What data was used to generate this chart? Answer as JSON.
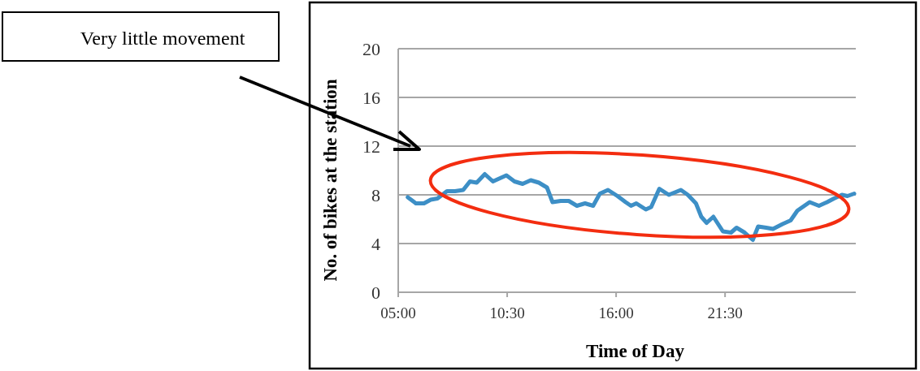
{
  "chart_data": {
    "type": "line",
    "xlabel": "Time of Day",
    "ylabel": "No. of bikes at the station",
    "annotations": [
      "Very little movement"
    ],
    "xlim": [
      5,
      28.1
    ],
    "ylim": [
      0,
      20
    ],
    "xticks": [
      {
        "value": 5,
        "label": "05:00"
      },
      {
        "value": 10.5,
        "label": "10:30"
      },
      {
        "value": 16,
        "label": "16:00"
      },
      {
        "value": 21.5,
        "label": "21:30"
      }
    ],
    "yticks": [
      0,
      4,
      8,
      12,
      16,
      20
    ],
    "grid": "y",
    "marker": "none",
    "line_style": "solid",
    "series": [
      {
        "color": "#3d8fc6",
        "x": [
          5.48,
          5.89,
          6.3,
          6.64,
          6.98,
          7.46,
          7.87,
          8.28,
          8.62,
          8.96,
          9.37,
          9.78,
          10.05,
          10.46,
          10.87,
          11.28,
          11.69,
          12.1,
          12.51,
          12.79,
          13.2,
          13.61,
          14.02,
          14.43,
          14.84,
          15.18,
          15.59,
          16.07,
          16.48,
          16.75,
          17.02,
          17.5,
          17.77,
          18.18,
          18.66,
          19.27,
          19.62,
          20.03,
          20.3,
          20.57,
          20.91,
          21.39,
          21.8,
          22.08,
          22.49,
          22.9,
          23.17,
          23.58,
          23.92,
          24.4,
          24.81,
          25.15,
          25.77,
          26.24,
          26.65,
          27.0,
          27.4,
          27.68,
          28.02
        ],
        "values": [
          7.8,
          7.3,
          7.3,
          7.6,
          7.7,
          8.3,
          8.3,
          8.4,
          9.1,
          9.0,
          9.7,
          9.1,
          9.3,
          9.6,
          9.1,
          8.9,
          9.2,
          9.0,
          8.6,
          7.4,
          7.5,
          7.5,
          7.1,
          7.3,
          7.1,
          8.1,
          8.4,
          7.9,
          7.4,
          7.1,
          7.3,
          6.8,
          7.0,
          8.5,
          8.0,
          8.4,
          8.0,
          7.3,
          6.2,
          5.7,
          6.2,
          5.0,
          4.9,
          5.3,
          4.9,
          4.3,
          5.4,
          5.3,
          5.2,
          5.6,
          5.9,
          6.7,
          7.4,
          7.1,
          7.4,
          7.7,
          8.0,
          7.9,
          8.1
        ]
      }
    ]
  }
}
